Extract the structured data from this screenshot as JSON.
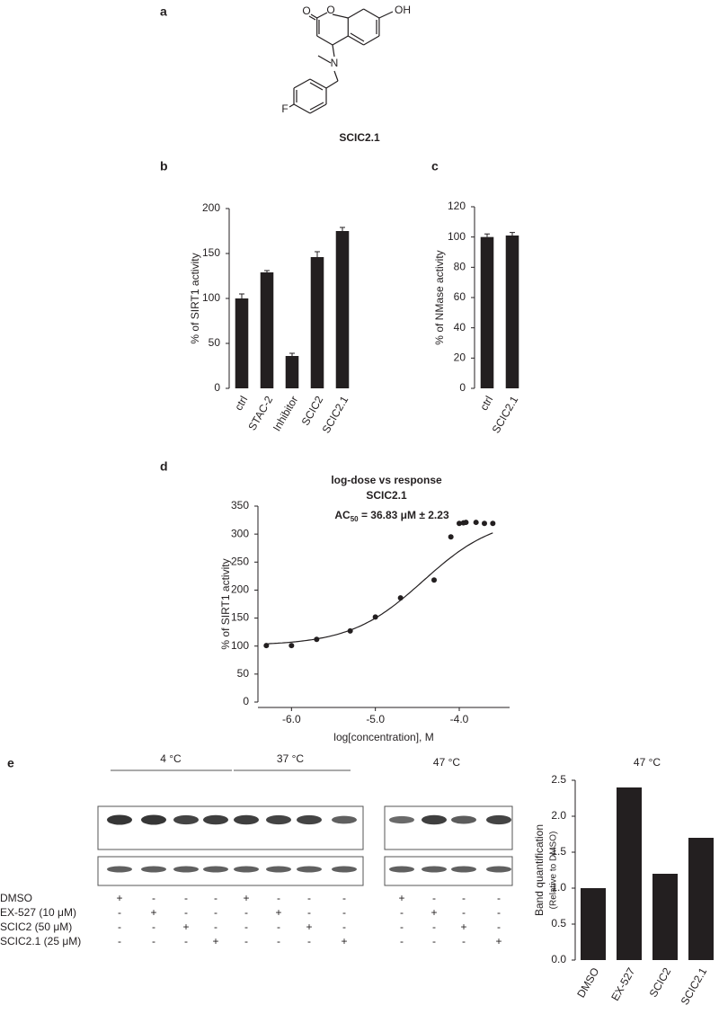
{
  "panel_labels": [
    "a",
    "b",
    "c",
    "d",
    "e"
  ],
  "structure": {
    "name": "SCIC2.1",
    "atoms": [
      "O",
      "O",
      "OH",
      "N",
      "F"
    ]
  },
  "chart_data": [
    {
      "type": "bar",
      "ylabel": "% of SIRT1 activity",
      "categories": [
        "ctrl",
        "STAC-2",
        "Inhibitor",
        "SCIC2",
        "SCIC2.1"
      ],
      "values": [
        100,
        129,
        36,
        146,
        175
      ],
      "errors": [
        5,
        2,
        3,
        6,
        4
      ],
      "ylim": [
        0,
        200
      ],
      "yticks": [
        0,
        50,
        100,
        150,
        200
      ],
      "color": "#231f20"
    },
    {
      "type": "bar",
      "ylabel": "% of NMase activity",
      "categories": [
        "ctrl",
        "SCIC2.1"
      ],
      "values": [
        100,
        101
      ],
      "errors": [
        2,
        2
      ],
      "ylim": [
        0,
        120
      ],
      "yticks": [
        0,
        20,
        40,
        60,
        80,
        100,
        120
      ],
      "color": "#231f20"
    },
    {
      "type": "scatter",
      "title": "log-dose vs response",
      "subtitle": "SCIC2.1",
      "annotation": {
        "prefix": "AC",
        "subscript": "50",
        "text": " = 36.83 μM ± 2.23"
      },
      "xlabel": "log[concentration], M",
      "ylabel": "% of SIRT1 activity",
      "x": [
        -6.3,
        -6.0,
        -5.7,
        -5.3,
        -5.0,
        -4.7,
        -4.3,
        -4.1,
        -4.0,
        -3.95,
        -3.92,
        -3.8,
        -3.7,
        -3.6
      ],
      "values": [
        101,
        101,
        112,
        127,
        152,
        186,
        218,
        295,
        319,
        320,
        321,
        321,
        319,
        319
      ],
      "fit": {
        "bottom": 101,
        "top": 332,
        "log_ac50": -4.43,
        "hill": 1.0
      },
      "xlim": [
        -6.4,
        -3.4
      ],
      "xticks": [
        {
          "value": -6,
          "label": "-6.0"
        },
        {
          "value": -5,
          "label": "-5.0"
        },
        {
          "value": -4,
          "label": "-4.0"
        }
      ],
      "ylim": [
        0,
        350
      ],
      "yticks": [
        0,
        50,
        100,
        150,
        200,
        250,
        300,
        350
      ],
      "color": "#231f20"
    },
    {
      "type": "bar",
      "title": "47 °C",
      "ylabel": "Band quantification",
      "ylabel2": "(Relative to DMSO)",
      "categories": [
        "DMSO",
        "EX-527",
        "SCIC2",
        "SCIC2.1"
      ],
      "values": [
        1.0,
        2.4,
        1.2,
        1.7
      ],
      "ylim": [
        0,
        2.5
      ],
      "yticks": [
        {
          "value": 0,
          "label": "0.0"
        },
        0.5,
        {
          "value": 1,
          "label": "1.0"
        },
        1.5,
        {
          "value": 2,
          "label": "2.0"
        },
        2.5
      ],
      "color": "#231f20"
    }
  ],
  "blot": {
    "temperatures": [
      "4 °C",
      "37 °C",
      "47 °C"
    ],
    "treatments": [
      "DMSO",
      "EX-527 (10 μM)",
      "SCIC2 (50 μM)",
      "SCIC2.1 (25 μM)"
    ],
    "signs": [
      [
        "+",
        "-",
        "-",
        "-",
        "+",
        "-",
        "-",
        "-",
        "+",
        "-",
        "-",
        "-"
      ],
      [
        "-",
        "+",
        "-",
        "-",
        "-",
        "+",
        "-",
        "-",
        "-",
        "+",
        "-",
        "-"
      ],
      [
        "-",
        "-",
        "+",
        "-",
        "-",
        "-",
        "+",
        "-",
        "-",
        "-",
        "+",
        "-"
      ],
      [
        "-",
        "-",
        "-",
        "+",
        "-",
        "-",
        "-",
        "+",
        "-",
        "-",
        "-",
        "+"
      ]
    ]
  }
}
